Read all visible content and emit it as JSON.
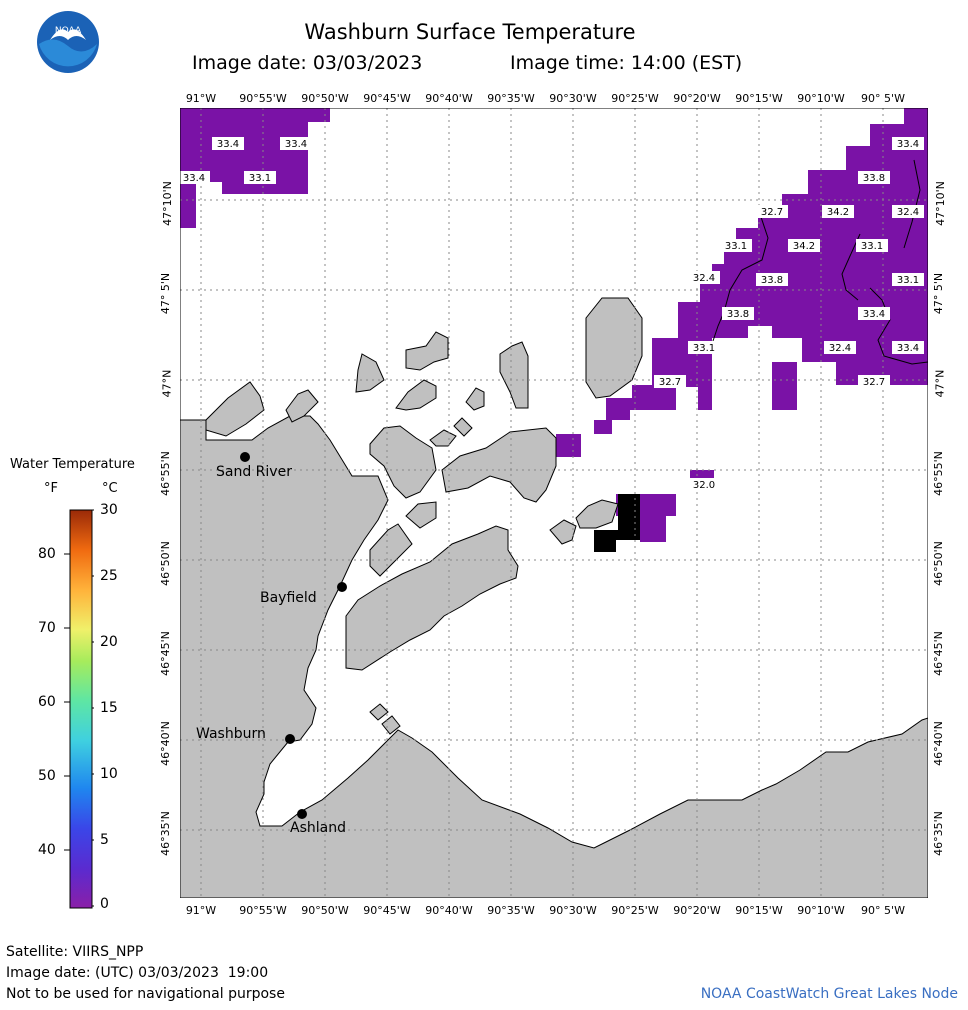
{
  "header": {
    "title": "Washburn Surface Temperature",
    "image_date_label": "Image date: 03/03/2023",
    "image_time_label": "Image time: 14:00 (EST)"
  },
  "logo": {
    "text": "NOAA"
  },
  "map": {
    "lon_ticks": [
      "91°W",
      "90°55'W",
      "90°50'W",
      "90°45'W",
      "90°40'W",
      "90°35'W",
      "90°30'W",
      "90°25'W",
      "90°20'W",
      "90°15'W",
      "90°10'W",
      "90° 5'W"
    ],
    "lat_ticks": [
      "47°10'N",
      "47° 5'N",
      "47°N",
      "46°55'N",
      "46°50'N",
      "46°45'N",
      "46°40'N",
      "46°35'N"
    ],
    "cities": [
      {
        "name": "Sand River"
      },
      {
        "name": "Bayfield"
      },
      {
        "name": "Washburn"
      },
      {
        "name": "Ashland"
      }
    ],
    "temperature_labels": [
      "33.4",
      "33.4",
      "33.4",
      "33.1",
      "33.4",
      "33.8",
      "32.7",
      "34.2",
      "32.4",
      "33.1",
      "34.2",
      "33.1",
      "32.4",
      "33.8",
      "33.1",
      "33.8",
      "33.4",
      "33.1",
      "32.4",
      "33.4",
      "32.7",
      "32.7",
      "32.0"
    ],
    "colors": {
      "land": "#c0c0c0",
      "water": "#ffffff",
      "cold_water": "#7a12a6",
      "nodata": "#000000",
      "grid": "#888888"
    }
  },
  "legend": {
    "title": "Water Temperature",
    "unit_f": "°F",
    "unit_c": "°C",
    "f_ticks": [
      "80",
      "70",
      "60",
      "50",
      "40"
    ],
    "c_ticks": [
      "30",
      "25",
      "20",
      "15",
      "10",
      "5",
      "0"
    ]
  },
  "footer": {
    "satellite": "Satellite: VIIRS_NPP",
    "utc_date": "Image date: (UTC) 03/03/2023  19:00",
    "disclaimer": "Not to be used for navigational purpose",
    "credit": "NOAA CoastWatch Great Lakes Node"
  }
}
